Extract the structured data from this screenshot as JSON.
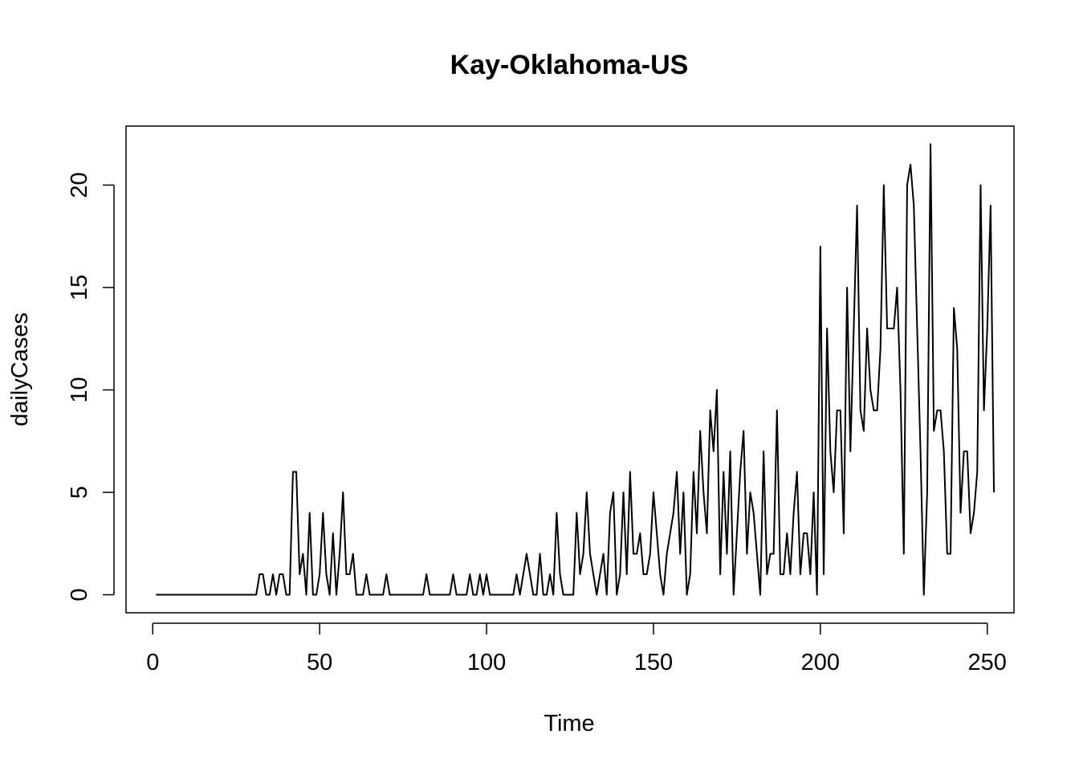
{
  "chart_data": {
    "type": "line",
    "title": "Kay-Oklahoma-US",
    "xlabel": "Time",
    "ylabel": "dailyCases",
    "xlim": [
      -8,
      258
    ],
    "ylim": [
      -0.88,
      22.88
    ],
    "x_ticks": [
      0,
      50,
      100,
      150,
      200,
      250
    ],
    "y_ticks": [
      0,
      5,
      10,
      15,
      20
    ],
    "grid": false,
    "legend": "none",
    "line_color": "#000000",
    "series": [
      {
        "x_start": 1,
        "values": [
          0,
          0,
          0,
          0,
          0,
          0,
          0,
          0,
          0,
          0,
          0,
          0,
          0,
          0,
          0,
          0,
          0,
          0,
          0,
          0,
          0,
          0,
          0,
          0,
          0,
          0,
          0,
          0,
          0,
          0,
          0,
          1,
          1,
          0,
          0,
          1,
          0,
          1,
          1,
          0,
          0,
          6,
          6,
          1,
          2,
          0,
          4,
          0,
          0,
          1,
          4,
          1,
          0,
          3,
          0,
          2,
          5,
          1,
          1,
          2,
          0,
          0,
          0,
          1,
          0,
          0,
          0,
          0,
          0,
          1,
          0,
          0,
          0,
          0,
          0,
          0,
          0,
          0,
          0,
          0,
          0,
          1,
          0,
          0,
          0,
          0,
          0,
          0,
          0,
          1,
          0,
          0,
          0,
          0,
          1,
          0,
          0,
          1,
          0,
          1,
          0,
          0,
          0,
          0,
          0,
          0,
          0,
          0,
          1,
          0,
          1,
          2,
          1,
          0,
          0,
          2,
          0,
          0,
          1,
          0,
          4,
          1,
          0,
          0,
          0,
          0,
          4,
          1,
          2,
          5,
          2,
          1,
          0,
          1,
          2,
          0,
          4,
          5,
          0,
          1,
          5,
          1,
          6,
          2,
          2,
          3,
          1,
          1,
          2,
          5,
          3,
          1,
          0,
          2,
          3,
          4,
          6,
          2,
          5,
          0,
          1,
          6,
          3,
          8,
          5,
          3,
          9,
          7,
          10,
          1,
          6,
          2,
          7,
          0,
          3,
          6,
          8,
          2,
          5,
          4,
          2,
          0,
          7,
          1,
          2,
          2,
          9,
          1,
          1,
          3,
          1,
          4,
          6,
          1,
          3,
          3,
          1,
          5,
          0,
          17,
          1,
          13,
          7,
          5,
          9,
          9,
          3,
          15,
          7,
          13,
          19,
          9,
          8,
          13,
          10,
          9,
          9,
          12,
          20,
          13,
          13,
          13,
          15,
          10,
          2,
          20,
          21,
          19,
          13,
          7,
          0,
          5,
          22,
          8,
          9,
          9,
          7,
          2,
          2,
          14,
          12,
          4,
          7,
          7,
          3,
          4,
          6,
          20,
          9,
          13,
          19,
          5
        ]
      }
    ]
  }
}
